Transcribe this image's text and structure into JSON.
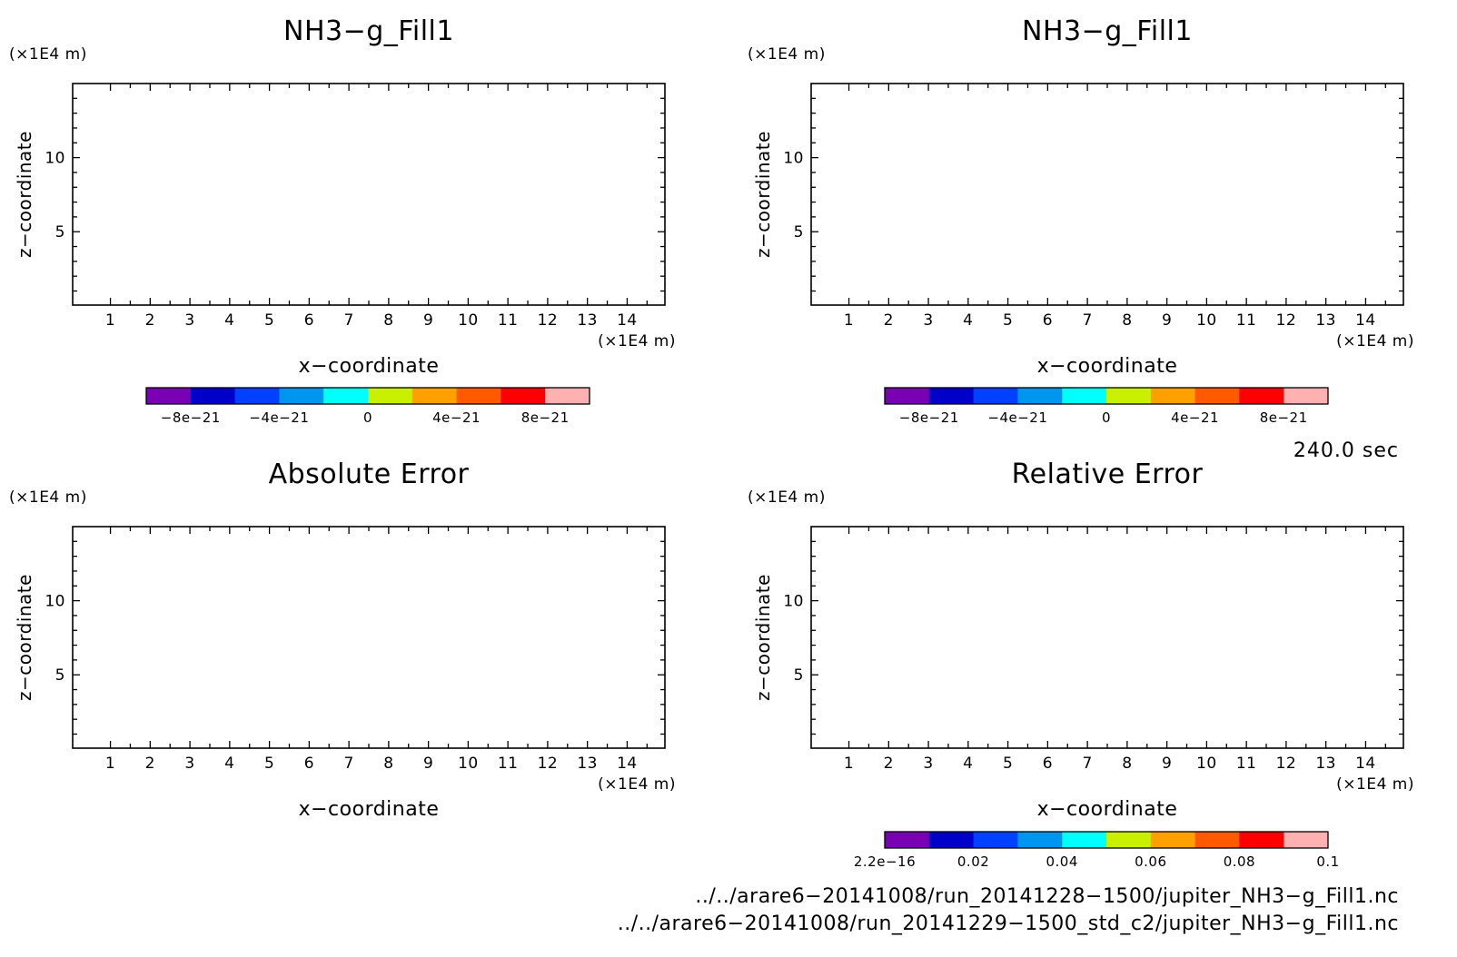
{
  "colors": {
    "palette": [
      "#7a00b4",
      "#0000c8",
      "#0040ff",
      "#0096f0",
      "#00ffff",
      "#c8f000",
      "#ffa000",
      "#ff5a00",
      "#ff0000",
      "#ffb0b0"
    ]
  },
  "chart_data": [
    {
      "type": "heatmap",
      "title": "NH3−g_Fill1",
      "xlabel": "x−coordinate",
      "ylabel": "z−coordinate",
      "x_unit": "(×1E4 m)",
      "y_unit": "(×1E4 m)",
      "xlim": [
        0.05,
        14.95
      ],
      "ylim": [
        0.05,
        15
      ],
      "xticks": [
        "1",
        "2",
        "3",
        "4",
        "5",
        "6",
        "7",
        "8",
        "9",
        "10",
        "11",
        "12",
        "13",
        "14"
      ],
      "yticks": [
        "5",
        "10"
      ],
      "colorbar": {
        "range": [
          -1e-20,
          1e-20
        ],
        "tick_values": [
          -8e-21,
          -4e-21,
          0,
          4e-21,
          8e-21
        ],
        "tick_labels": [
          "−8e−21",
          "−4e−21",
          "0",
          "4e−21",
          "8e−21"
        ]
      }
    },
    {
      "type": "heatmap",
      "title": "NH3−g_Fill1",
      "xlabel": "x−coordinate",
      "ylabel": "z−coordinate",
      "x_unit": "(×1E4 m)",
      "y_unit": "(×1E4 m)",
      "xlim": [
        0.05,
        14.95
      ],
      "ylim": [
        0.05,
        15
      ],
      "xticks": [
        "1",
        "2",
        "3",
        "4",
        "5",
        "6",
        "7",
        "8",
        "9",
        "10",
        "11",
        "12",
        "13",
        "14"
      ],
      "yticks": [
        "5",
        "10"
      ],
      "colorbar": {
        "range": [
          -1e-20,
          1e-20
        ],
        "tick_values": [
          -8e-21,
          -4e-21,
          0,
          4e-21,
          8e-21
        ],
        "tick_labels": [
          "−8e−21",
          "−4e−21",
          "0",
          "4e−21",
          "8e−21"
        ]
      }
    },
    {
      "type": "heatmap",
      "title": "Absolute Error",
      "xlabel": "x−coordinate",
      "ylabel": "z−coordinate",
      "x_unit": "(×1E4 m)",
      "y_unit": "(×1E4 m)",
      "xlim": [
        0.05,
        14.95
      ],
      "ylim": [
        0.05,
        15
      ],
      "xticks": [
        "1",
        "2",
        "3",
        "4",
        "5",
        "6",
        "7",
        "8",
        "9",
        "10",
        "11",
        "12",
        "13",
        "14"
      ],
      "yticks": [
        "5",
        "10"
      ]
    },
    {
      "type": "heatmap",
      "title": "Relative Error",
      "xlabel": "x−coordinate",
      "ylabel": "z−coordinate",
      "x_unit": "(×1E4 m)",
      "y_unit": "(×1E4 m)",
      "xlim": [
        0.05,
        14.95
      ],
      "ylim": [
        0.05,
        15
      ],
      "xticks": [
        "1",
        "2",
        "3",
        "4",
        "5",
        "6",
        "7",
        "8",
        "9",
        "10",
        "11",
        "12",
        "13",
        "14"
      ],
      "yticks": [
        "5",
        "10"
      ],
      "colorbar": {
        "range": [
          2.2e-16,
          0.1
        ],
        "tick_values": [
          2.2e-16,
          0.02,
          0.04,
          0.06,
          0.08,
          0.1
        ],
        "tick_labels": [
          "2.2e−16",
          "0.02",
          "0.04",
          "0.06",
          "0.08",
          "0.1"
        ]
      }
    }
  ],
  "time_label": "240.0 sec",
  "files": [
    "../../arare6−20141008/run_20141228−1500/jupiter_NH3−g_Fill1.nc",
    "../../arare6−20141008/run_20141229−1500_std_c2/jupiter_NH3−g_Fill1.nc"
  ]
}
